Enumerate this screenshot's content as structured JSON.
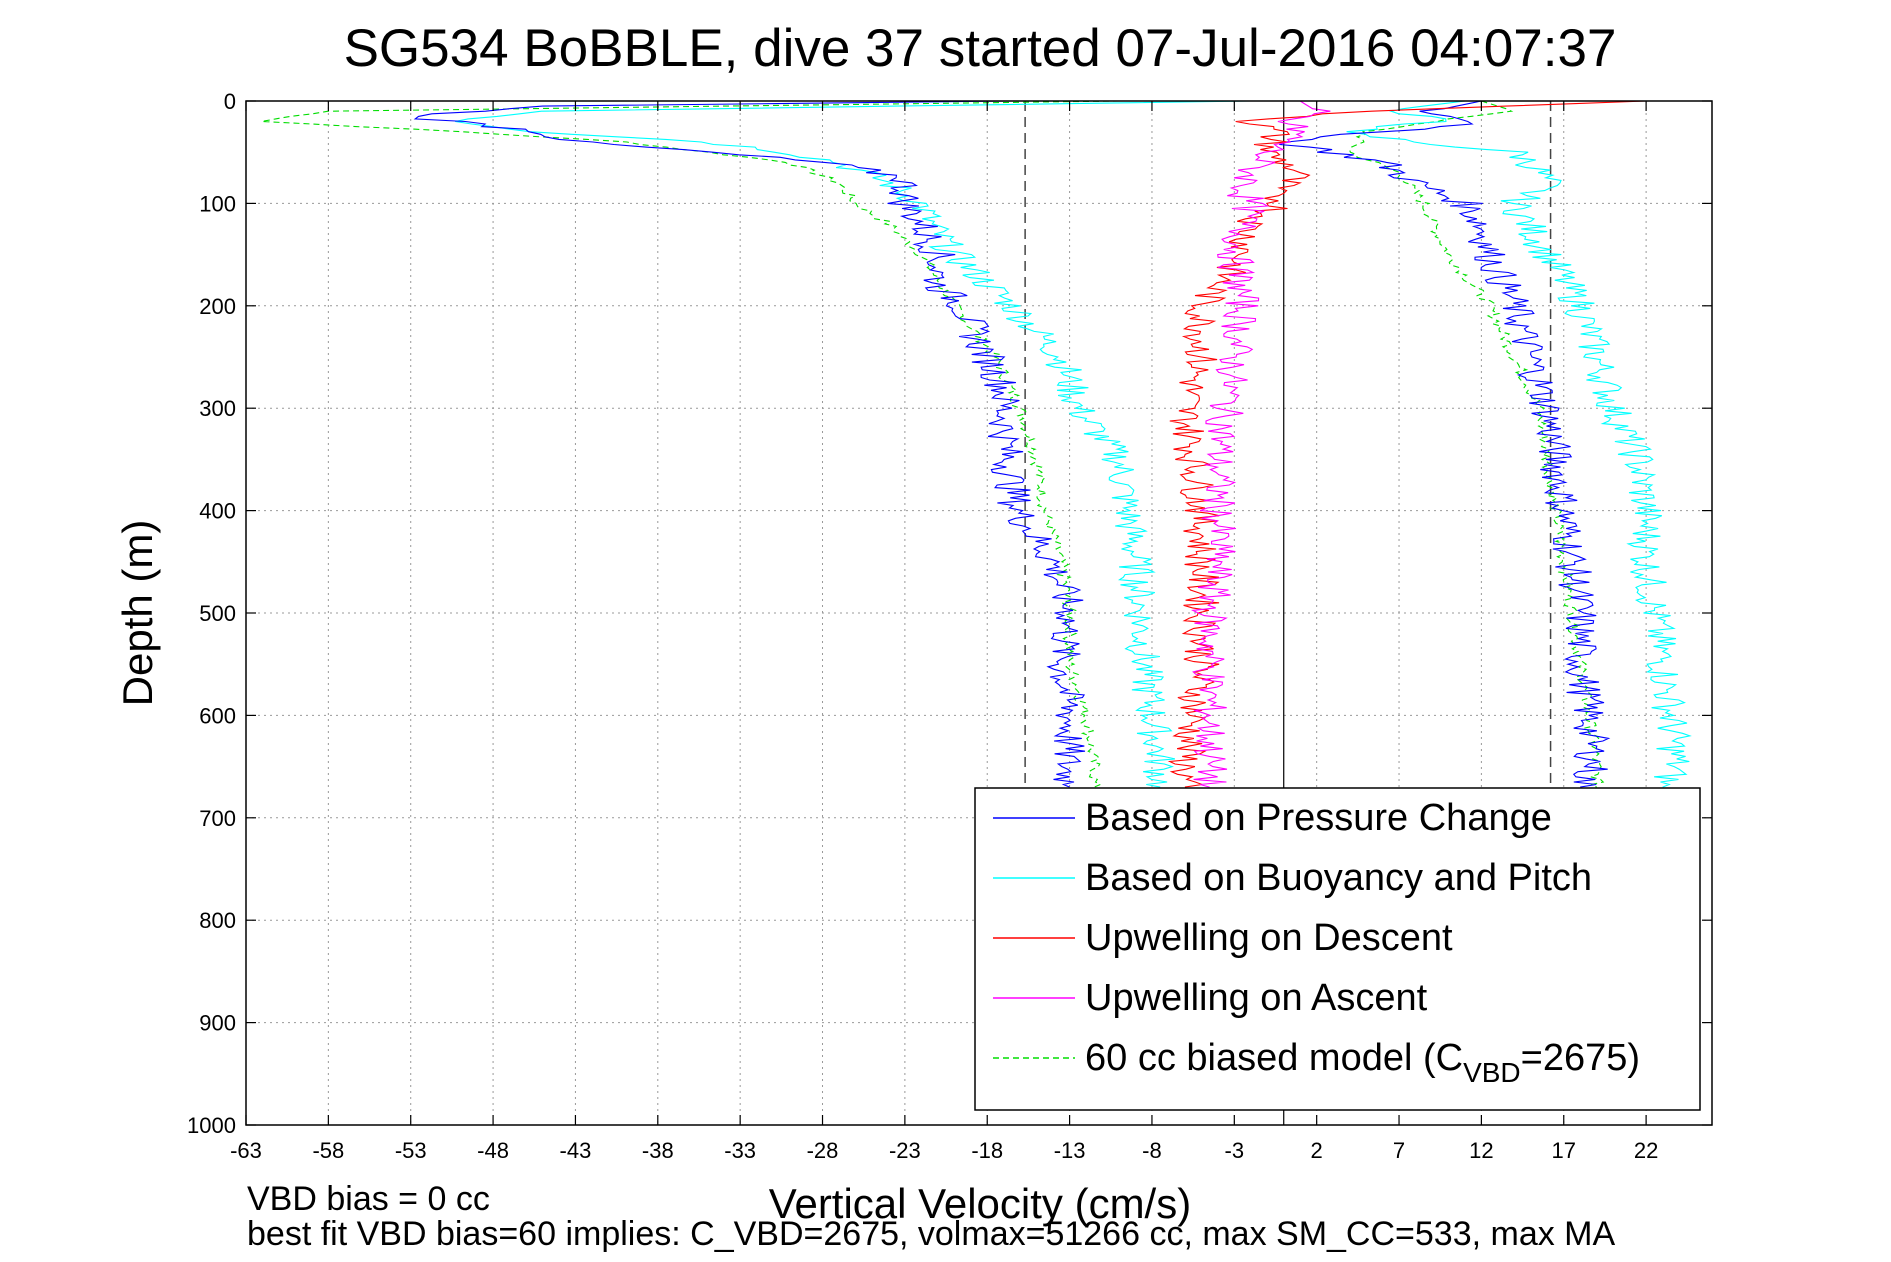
{
  "chart_data": {
    "type": "line",
    "title": "SG534 BoBBLE, dive 37 started 07-Jul-2016 04:07:37",
    "xlabel": "Vertical Velocity (cm/s)",
    "ylabel": "Depth (m)",
    "xlim": [
      -63,
      26
    ],
    "ylim": [
      0,
      1000
    ],
    "y_reversed": true,
    "grid": true,
    "legend_position": "lower-right",
    "x_ticks": [
      -63,
      -58,
      -53,
      -48,
      -43,
      -38,
      -33,
      -28,
      -23,
      -18,
      -13,
      -8,
      -3,
      2,
      7,
      12,
      17,
      22
    ],
    "y_ticks": [
      0,
      100,
      200,
      300,
      400,
      500,
      600,
      700,
      800,
      900,
      1000
    ],
    "reference_lines": {
      "solid_x": 0,
      "dashed_x": [
        -15.7,
        16.2
      ],
      "dashed_ymax": 670
    },
    "series": [
      {
        "name": "Based on Pressure Change",
        "color": "#0000ff",
        "style": "solid",
        "descent": {
          "depth": [
            0,
            5,
            15,
            30,
            40,
            50,
            60,
            75,
            100,
            120,
            150,
            180,
            200,
            220,
            250,
            280,
            300,
            350,
            400,
            450,
            500,
            550,
            600,
            650,
            670
          ],
          "velocity": [
            -16.5,
            -45,
            -53,
            -45,
            -43,
            -35,
            -28,
            -23,
            -23,
            -22,
            -21,
            -21,
            -19.5,
            -19,
            -18,
            -17,
            -17,
            -16.8,
            -16.2,
            -14,
            -13,
            -13.5,
            -13,
            -13.2,
            -13
          ]
        },
        "ascent": {
          "depth": [
            0,
            10,
            20,
            30,
            40,
            50,
            60,
            80,
            100,
            120,
            150,
            200,
            250,
            300,
            350,
            400,
            450,
            500,
            550,
            600,
            650,
            670
          ],
          "velocity": [
            12,
            9,
            12,
            6,
            0,
            3,
            6,
            8,
            11,
            12,
            12.5,
            14,
            15,
            16,
            16.5,
            17,
            17.5,
            18,
            18,
            18.5,
            18.8,
            18
          ]
        }
      },
      {
        "name": "Based on Buoyancy and Pitch",
        "color": "#00ffff",
        "style": "solid",
        "descent": {
          "depth": [
            0,
            10,
            20,
            30,
            40,
            50,
            60,
            80,
            100,
            120,
            150,
            200,
            250,
            300,
            350,
            400,
            450,
            500,
            550,
            600,
            650,
            670
          ],
          "velocity": [
            -2,
            -45,
            -50,
            -45,
            -35,
            -30,
            -27,
            -24,
            -22,
            -21.5,
            -20,
            -16.5,
            -13.5,
            -12.5,
            -10,
            -9.5,
            -9,
            -8.7,
            -8.5,
            -8,
            -7.5,
            -7.5
          ]
        },
        "ascent": {
          "depth": [
            0,
            10,
            20,
            30,
            40,
            50,
            60,
            80,
            100,
            150,
            200,
            250,
            300,
            350,
            400,
            450,
            500,
            550,
            600,
            650,
            670
          ],
          "velocity": [
            11,
            6,
            10,
            3,
            8,
            14,
            15,
            16,
            14,
            16,
            18,
            19,
            20,
            21.5,
            22,
            22,
            22.5,
            23,
            23.5,
            23.8,
            23
          ]
        }
      },
      {
        "name": "Upwelling on Descent",
        "color": "#ff0000",
        "style": "solid",
        "depth": [
          0,
          10,
          20,
          30,
          50,
          70,
          90,
          100,
          120,
          150,
          200,
          250,
          300,
          350,
          400,
          450,
          500,
          550,
          600,
          650,
          670
        ],
        "velocity": [
          22,
          5,
          -2,
          -0.5,
          -1,
          1,
          -1,
          0,
          -2,
          -2.5,
          -5,
          -5,
          -6,
          -5.5,
          -5,
          -5,
          -5,
          -5,
          -5.5,
          -6,
          -6
        ]
      },
      {
        "name": "Upwelling on Ascent",
        "color": "#ff00ff",
        "style": "solid",
        "depth": [
          0,
          10,
          20,
          30,
          50,
          70,
          90,
          100,
          120,
          150,
          200,
          250,
          300,
          350,
          400,
          450,
          500,
          550,
          600,
          650,
          670
        ],
        "velocity": [
          1,
          2,
          0,
          1,
          -1,
          -2,
          -2.5,
          -2,
          -2.5,
          -3,
          -2.5,
          -3,
          -3.5,
          -4,
          -4,
          -4,
          -4.5,
          -4.5,
          -4.5,
          -4.5,
          -4.5
        ]
      },
      {
        "name": "60 cc biased model (C",
        "name_sub": "VBD",
        "name_suffix": "=2675)",
        "color": "#00dd00",
        "style": "dashed",
        "descent": {
          "depth": [
            0,
            10,
            20,
            30,
            40,
            50,
            60,
            80,
            100,
            120,
            150,
            200,
            250,
            300,
            350,
            400,
            450,
            500,
            550,
            600,
            650,
            670
          ],
          "velocity": [
            -10,
            -58,
            -62,
            -50,
            -40,
            -35,
            -30,
            -27,
            -26,
            -24,
            -22,
            -20,
            -17.5,
            -16,
            -15,
            -14.5,
            -13.5,
            -13,
            -13,
            -12,
            -11.5,
            -11.5
          ]
        },
        "ascent": {
          "depth": [
            0,
            10,
            20,
            30,
            50,
            70,
            100,
            150,
            200,
            250,
            300,
            350,
            400,
            450,
            500,
            550,
            600,
            650,
            670
          ],
          "velocity": [
            12,
            14,
            9,
            5,
            4,
            7,
            8.5,
            10,
            12.5,
            14,
            15.5,
            16,
            16.5,
            17,
            17.5,
            18,
            18.5,
            19,
            19
          ]
        }
      }
    ],
    "legend": [
      "Based on Pressure Change",
      "Based on Buoyancy and Pitch",
      "Upwelling on Descent",
      "Upwelling on Ascent",
      "60 cc biased model (C",
      "VBD",
      "=2675)"
    ],
    "annotations": [
      "VBD bias = 0 cc",
      "best fit VBD bias=60 implies: C_VBD=2675, volmax=51266 cc, max SM_CC=533, max MA"
    ]
  }
}
